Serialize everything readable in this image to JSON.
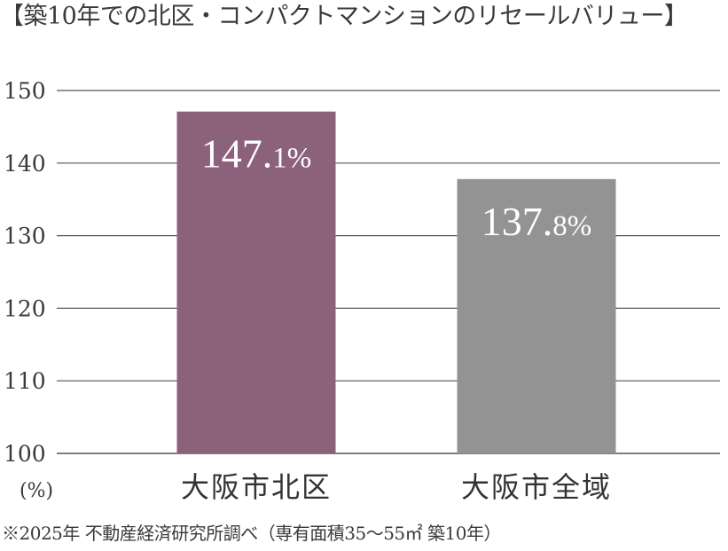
{
  "header": {
    "title": "【築10年での北区・コンパクトマンションのリセールバリュー】"
  },
  "footer": {
    "note": "※2025年 不動産経済研究所調べ（専有面積35～55㎡ 築10年）"
  },
  "chart_data": {
    "type": "bar",
    "title": "【築10年での北区・コンパクトマンションのリセールバリュー】",
    "ylabel": "(%)",
    "ylim": [
      100,
      150
    ],
    "yticks": [
      100,
      110,
      120,
      130,
      140,
      150
    ],
    "grid": true,
    "categories": [
      "大阪市北区",
      "大阪市全域"
    ],
    "values": [
      147.1,
      137.8
    ],
    "data_labels": [
      {
        "main": "147.",
        "decimal": "1%"
      },
      {
        "main": "137.",
        "decimal": "8%"
      }
    ],
    "colors": [
      "#8c617c",
      "#939393"
    ],
    "gridline_color": "#555555"
  }
}
